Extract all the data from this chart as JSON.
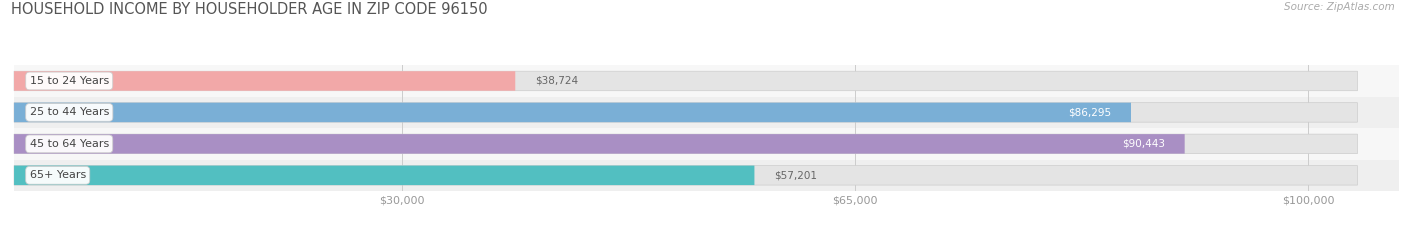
{
  "title": "HOUSEHOLD INCOME BY HOUSEHOLDER AGE IN ZIP CODE 96150",
  "source": "Source: ZipAtlas.com",
  "categories": [
    "15 to 24 Years",
    "25 to 44 Years",
    "45 to 64 Years",
    "65+ Years"
  ],
  "values": [
    38724,
    86295,
    90443,
    57201
  ],
  "bar_colors": [
    "#f2a8a8",
    "#7aafd6",
    "#a98fc4",
    "#52bfc1"
  ],
  "label_text_colors": [
    "#666666",
    "#ffffff",
    "#ffffff",
    "#666666"
  ],
  "value_inside": [
    false,
    true,
    true,
    false
  ],
  "row_bg_colors": [
    "#f7f7f7",
    "#efefef"
  ],
  "x_ticks": [
    30000,
    65000,
    100000
  ],
  "x_tick_labels": [
    "$30,000",
    "$65,000",
    "$100,000"
  ],
  "xmax": 107000,
  "xmin": 0,
  "title_fontsize": 10.5,
  "source_fontsize": 7.5,
  "tick_fontsize": 8,
  "category_fontsize": 8,
  "value_fontsize": 7.5,
  "background_color": "#ffffff"
}
